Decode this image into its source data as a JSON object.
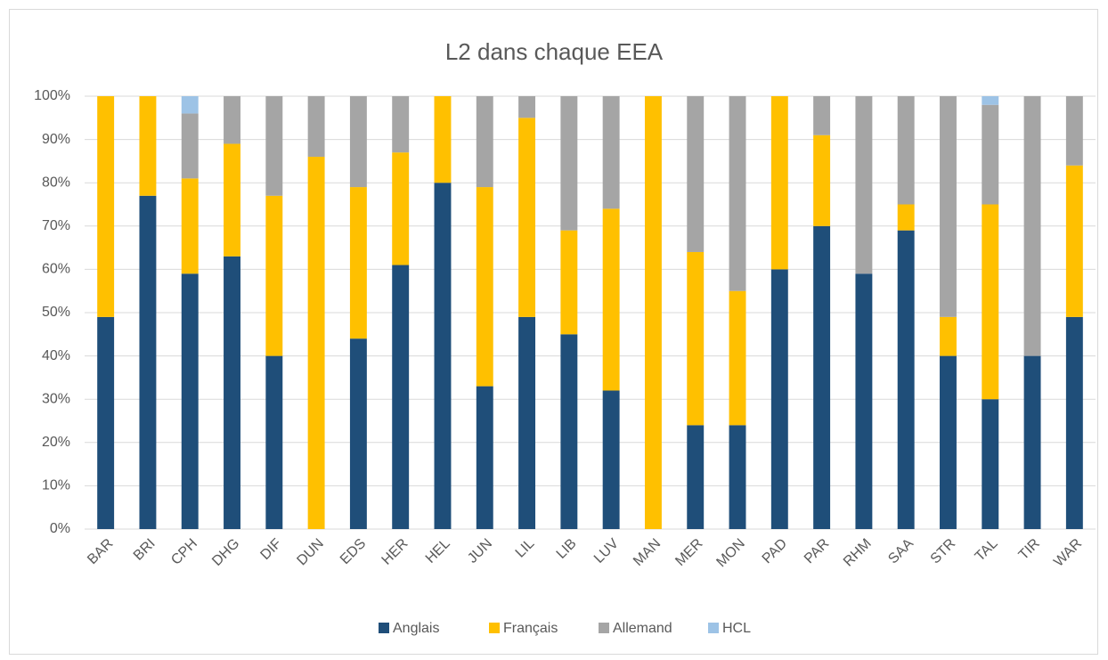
{
  "chart_data": {
    "type": "stacked_bar",
    "title": "L2 dans chaque EEA",
    "categories": [
      "BAR",
      "BRI",
      "CPH",
      "DHG",
      "DIF",
      "DUN",
      "EDS",
      "HER",
      "HEL",
      "JUN",
      "LIL",
      "LIB",
      "LUV",
      "MAN",
      "MER",
      "MON",
      "PAD",
      "PAR",
      "RHM",
      "SAA",
      "STR",
      "TAL",
      "TIR",
      "WAR"
    ],
    "series": [
      {
        "name": "Anglais",
        "color": "#1f4e79",
        "values": [
          49,
          77,
          59,
          63,
          40,
          0,
          44,
          61,
          80,
          33,
          49,
          45,
          32,
          0,
          24,
          24,
          60,
          70,
          59,
          69,
          40,
          30,
          40,
          49
        ]
      },
      {
        "name": "Français",
        "color": "#ffc000",
        "values": [
          51,
          23,
          22,
          26,
          37,
          86,
          35,
          26,
          20,
          46,
          46,
          24,
          42,
          100,
          40,
          31,
          40,
          21,
          0,
          6,
          9,
          45,
          0,
          35
        ]
      },
      {
        "name": "Allemand",
        "color": "#a5a5a5",
        "values": [
          0,
          0,
          15,
          11,
          23,
          14,
          21,
          13,
          0,
          21,
          5,
          31,
          26,
          0,
          36,
          45,
          0,
          9,
          41,
          25,
          51,
          23,
          60,
          16
        ]
      },
      {
        "name": "HCL",
        "color": "#9dc3e6",
        "values": [
          0,
          0,
          4,
          0,
          0,
          0,
          0,
          0,
          0,
          0,
          0,
          0,
          0,
          0,
          0,
          0,
          0,
          0,
          0,
          0,
          0,
          2,
          0,
          0
        ]
      }
    ],
    "ylim": [
      0,
      100
    ],
    "yticks": [
      {
        "value": 0,
        "label": "0%"
      },
      {
        "value": 10,
        "label": "10%"
      },
      {
        "value": 20,
        "label": "20%"
      },
      {
        "value": 30,
        "label": "30%"
      },
      {
        "value": 40,
        "label": "40%"
      },
      {
        "value": 50,
        "label": "50%"
      },
      {
        "value": 60,
        "label": "60%"
      },
      {
        "value": 70,
        "label": "70%"
      },
      {
        "value": 80,
        "label": "80%"
      },
      {
        "value": 90,
        "label": "90%"
      },
      {
        "value": 100,
        "label": "100%"
      }
    ],
    "grid": true,
    "legend": "bottom"
  }
}
